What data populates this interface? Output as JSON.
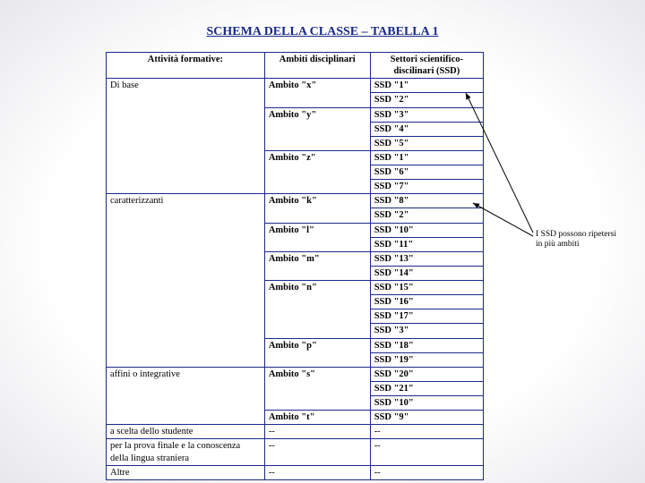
{
  "title": "SCHEMA DELLA CLASSE – TABELLA 1",
  "columns": [
    "Attività formative:",
    "Ambiti disciplinari",
    "Settori scientifico-discilinari (SSD)"
  ],
  "rows": [
    {
      "attivita": "Di base",
      "ambiti": [
        {
          "label": "Ambito \"x\"",
          "ssd": [
            "SSD \"1\"",
            "SSD \"2\""
          ]
        },
        {
          "label": "Ambito \"y\"",
          "ssd": [
            "SSD \"3\"",
            "SSD \"4\"",
            "SSD \"5\""
          ]
        },
        {
          "label": "Ambito \"z\"",
          "ssd": [
            "SSD \"1\"",
            "SSD \"6\"",
            "SSD \"7\""
          ]
        }
      ]
    },
    {
      "attivita": "caratterizzanti",
      "ambiti": [
        {
          "label": "Ambito \"k\"",
          "ssd": [
            "SSD \"8\"",
            "SSD \"2\""
          ]
        },
        {
          "label": "Ambito \"l\"",
          "ssd": [
            "SSD \"10\"",
            "SSD \"11\""
          ]
        },
        {
          "label": "Ambito \"m\"",
          "ssd": [
            "SSD \"13\"",
            "SSD \"14\""
          ]
        },
        {
          "label": "Ambito \"n\"",
          "ssd": [
            "SSD \"15\"",
            "SSD \"16\"",
            "SSD \"17\"",
            "SSD \"3\""
          ]
        },
        {
          "label": "Ambito \"p\"",
          "ssd": [
            "SSD \"18\"",
            "SSD \"19\""
          ]
        }
      ]
    },
    {
      "attivita": "affini o integrative",
      "ambiti": [
        {
          "label": "Ambito \"s\"",
          "ssd": [
            "SSD \"20\"",
            "SSD \"21\"",
            "SSD \"10\""
          ]
        },
        {
          "label": "Ambito \"t\"",
          "ssd": [
            "SSD \"9\""
          ]
        }
      ]
    },
    {
      "attivita": "a scelta dello studente",
      "ambiti": [
        {
          "label": "--",
          "ssd": [
            "--"
          ]
        }
      ]
    },
    {
      "attivita": "per la prova finale e la conoscenza della lingua straniera",
      "ambiti": [
        {
          "label": "--",
          "ssd": [
            "--"
          ]
        }
      ]
    },
    {
      "attivita": "Altre",
      "ambiti": [
        {
          "label": "--",
          "ssd": [
            "--"
          ]
        }
      ]
    }
  ],
  "annotation": {
    "line1": "I SSD possono ripetersi",
    "line2": "in più ambiti"
  },
  "colors": {
    "border": "#1a2a8a",
    "title": "#1a2a8a",
    "arrow": "#000000"
  }
}
